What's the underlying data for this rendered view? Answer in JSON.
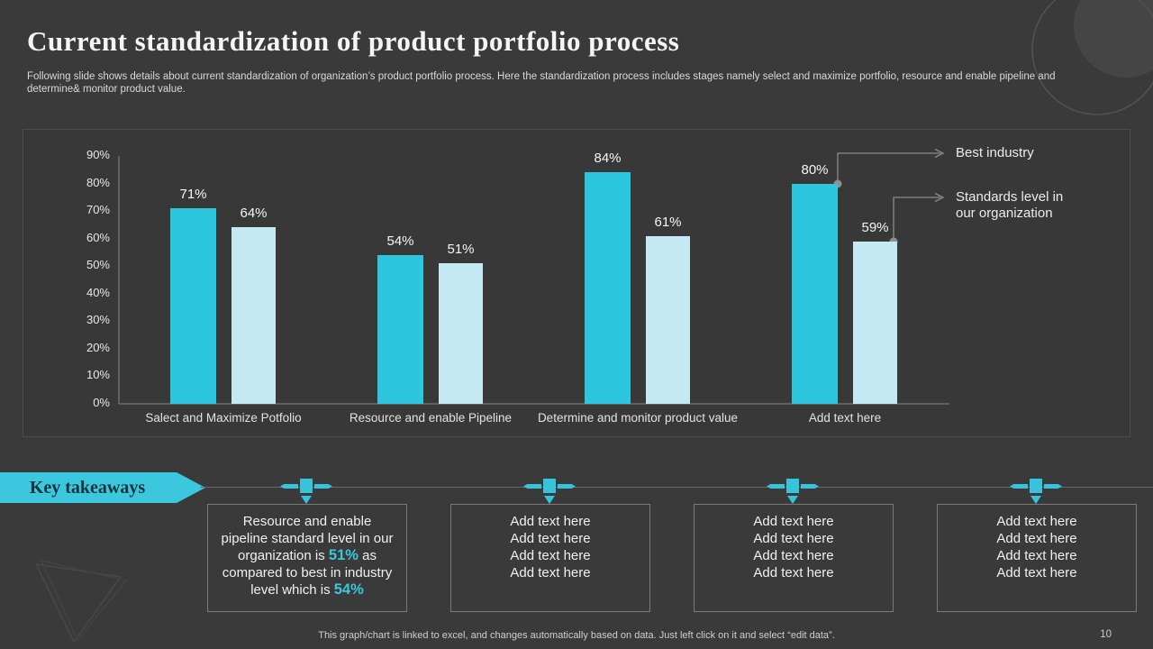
{
  "slide": {
    "title": "Current standardization of product portfolio process",
    "subtitle": "Following slide shows details about current standardization of organization’s product portfolio process. Here the standardization process includes stages namely select and maximize portfolio, resource and enable pipeline and determine& monitor product value.",
    "footer_note": "This graph/chart is linked to excel,  and changes automatically based on data. Just left click on it and select “edit data”.",
    "page_number": "10"
  },
  "colors": {
    "background": "#3a3a3a",
    "accent_dark_cyan": "#2cc7de",
    "accent_light_cyan": "#c5e9f2",
    "banner_cyan": "#3bc8de",
    "banner_text": "#16323c",
    "text_light": "#f0f0f0",
    "line_gray": "#8a8a8a"
  },
  "chart_data": {
    "type": "bar",
    "title": "",
    "categories": [
      "Salect and Maximize Potfolio",
      "Resource and enable Pipeline",
      "Determine and monitor product value",
      "Add text here"
    ],
    "series": [
      {
        "id": "best-industry",
        "name": "Best industry",
        "color": "#2cc7de",
        "values": [
          71,
          54,
          84,
          80
        ]
      },
      {
        "id": "standards-level",
        "name": "Standards level in our organization",
        "color": "#c5e9f2",
        "values": [
          64,
          51,
          61,
          59
        ]
      }
    ],
    "value_label_format": "percent",
    "xlabel": "",
    "ylabel": "",
    "ylim": [
      0,
      90
    ],
    "tick_step": 10,
    "grid": false,
    "legend_position": "right-callouts",
    "legend": [
      "Best industry",
      "Standards level in\nour organization"
    ]
  },
  "takeaways": {
    "heading": "Key takeaways",
    "boxes": [
      {
        "segments": [
          {
            "text": "Resource and enable pipeline standard level in our organization is "
          },
          {
            "text": "51%",
            "highlight": true
          },
          {
            "text": " as compared to best in industry level which is "
          },
          {
            "text": "54%",
            "highlight": true
          }
        ]
      },
      {
        "lines": [
          "Add text here",
          "Add text here",
          "Add text here",
          "Add text here"
        ]
      },
      {
        "lines": [
          "Add text here",
          "Add text here",
          "Add text here",
          "Add text here"
        ]
      },
      {
        "lines": [
          "Add text here",
          "Add text here",
          "Add text here",
          "Add text here"
        ]
      }
    ]
  }
}
